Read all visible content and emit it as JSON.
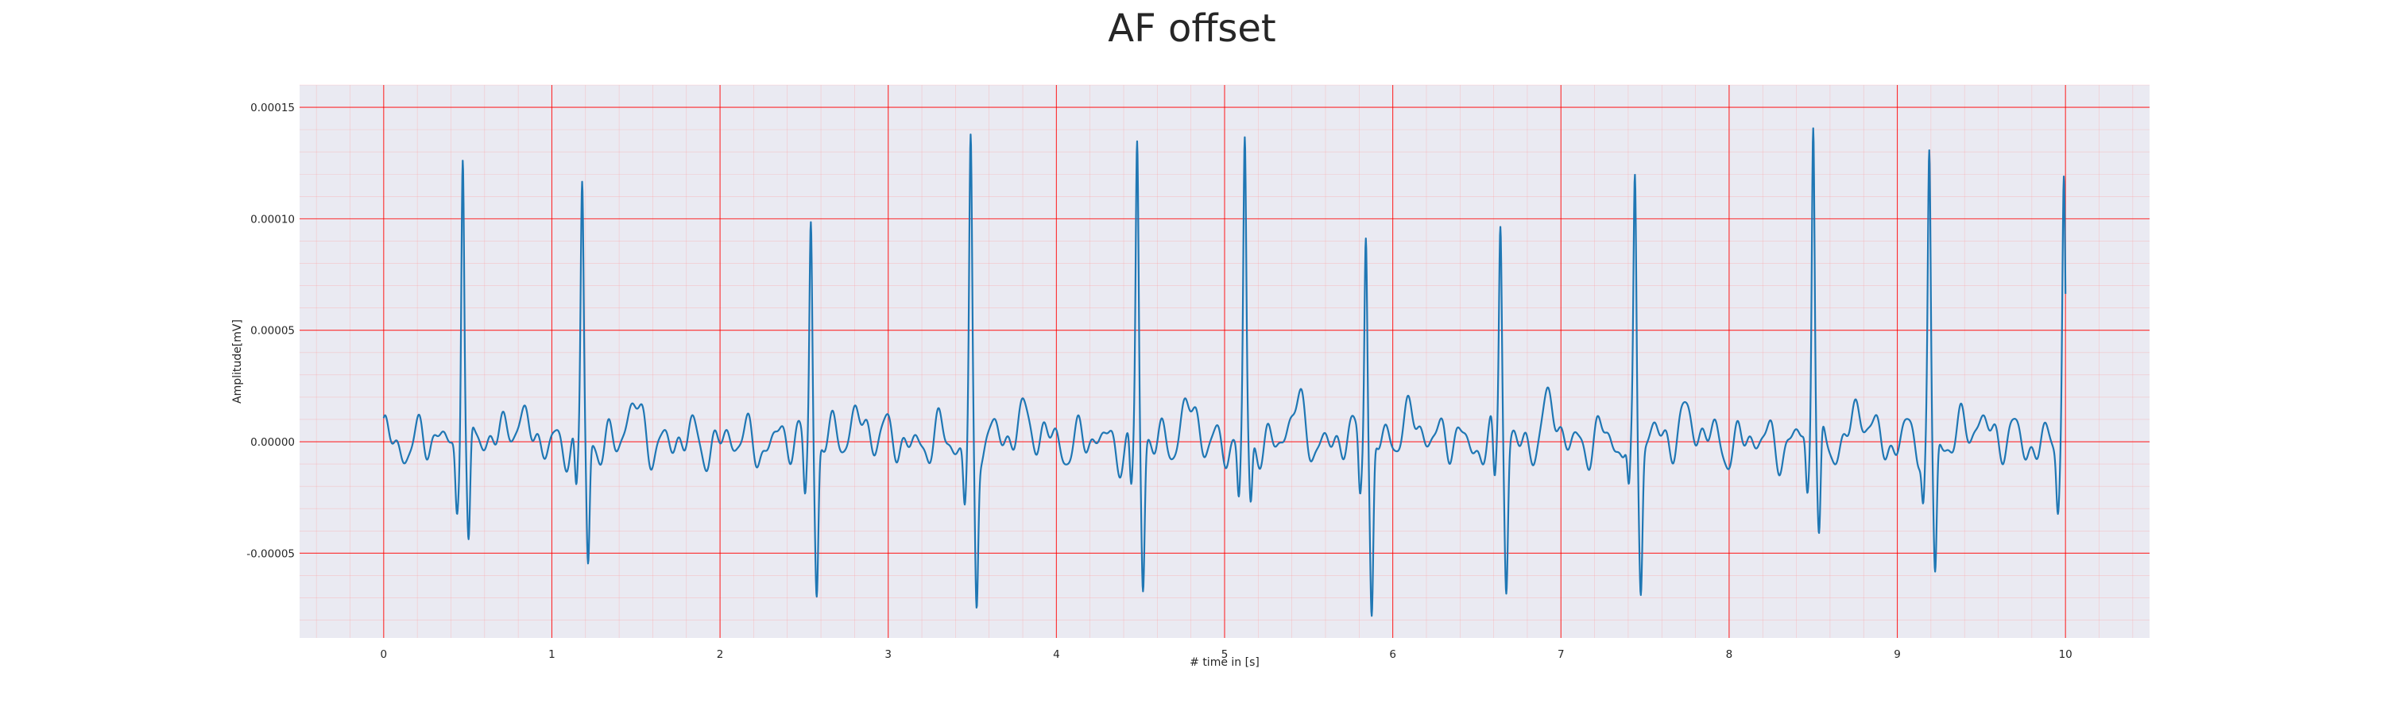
{
  "chart_data": {
    "type": "line",
    "title": "AF offset",
    "xlabel": "# time in [s]",
    "ylabel": "Amplitude[mV]",
    "xlim": [
      -0.5,
      10.5
    ],
    "ylim": [
      -8.8e-05,
      0.00016
    ],
    "x_ticks": [
      0,
      1,
      2,
      3,
      4,
      5,
      6,
      7,
      8,
      9,
      10
    ],
    "x_tick_labels": [
      "0",
      "1",
      "2",
      "3",
      "4",
      "5",
      "6",
      "7",
      "8",
      "9",
      "10"
    ],
    "y_ticks": [
      -5e-05,
      0.0,
      5e-05,
      0.0001,
      0.00015
    ],
    "y_tick_labels": [
      "-0.00005",
      "0.00000",
      "0.00005",
      "0.00010",
      "0.00015"
    ],
    "grid": {
      "major": true,
      "minor": true,
      "major_color": "#ff0000",
      "minor_color": "#ff9999"
    },
    "background_color": "#eaeaf2",
    "series": [
      {
        "color": "#1f77b4",
        "sample_step": 0.01,
        "x_start": 0.0,
        "beats": [
          {
            "t": 0.47,
            "r": 0.000137,
            "s": -5.4e-05
          },
          {
            "t": 1.18,
            "r": 0.000111,
            "s": -6e-05
          },
          {
            "t": 2.54,
            "r": 0.000105,
            "s": -6.4e-05
          },
          {
            "t": 3.49,
            "r": 0.000131,
            "s": -7.2e-05
          },
          {
            "t": 4.48,
            "r": 0.00013,
            "s": -6.6e-05
          },
          {
            "t": 5.12,
            "r": 0.000127,
            "s": -3.2e-05
          },
          {
            "t": 5.84,
            "r": 0.000103,
            "s": -7.7e-05
          },
          {
            "t": 6.64,
            "r": 9.8e-05,
            "s": -6.3e-05
          },
          {
            "t": 7.44,
            "r": 0.000118,
            "s": -6e-05
          },
          {
            "t": 8.5,
            "r": 0.000149,
            "s": -4.9e-05
          },
          {
            "t": 9.19,
            "r": 0.000128,
            "s": -5.8e-05
          },
          {
            "t": 9.99,
            "r": 0.000113,
            "s": -2.6e-05
          }
        ],
        "baseline_noise_amplitude": 1.2e-05
      }
    ]
  }
}
